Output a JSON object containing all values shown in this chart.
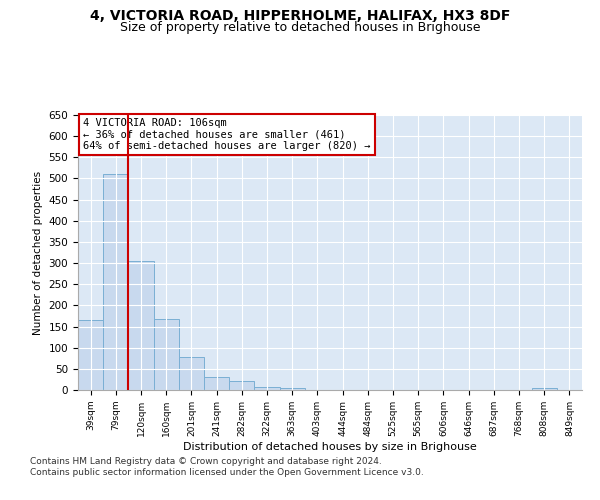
{
  "title": "4, VICTORIA ROAD, HIPPERHOLME, HALIFAX, HX3 8DF",
  "subtitle": "Size of property relative to detached houses in Brighouse",
  "xlabel": "Distribution of detached houses by size in Brighouse",
  "ylabel": "Number of detached properties",
  "bar_values": [
    165,
    510,
    305,
    168,
    77,
    30,
    21,
    6,
    5,
    0,
    0,
    0,
    0,
    0,
    0,
    0,
    0,
    0,
    5,
    0
  ],
  "bar_labels": [
    "39sqm",
    "79sqm",
    "120sqm",
    "160sqm",
    "201sqm",
    "241sqm",
    "282sqm",
    "322sqm",
    "363sqm",
    "403sqm",
    "444sqm",
    "484sqm",
    "525sqm",
    "565sqm",
    "606sqm",
    "646sqm",
    "687sqm",
    "768sqm",
    "808sqm",
    "849sqm"
  ],
  "bar_color": "#c8d9ee",
  "bar_edge_color": "#7aafd4",
  "vline_x": 2.0,
  "vline_color": "#cc0000",
  "annotation_text": "4 VICTORIA ROAD: 106sqm\n← 36% of detached houses are smaller (461)\n64% of semi-detached houses are larger (820) →",
  "annotation_box_color": "#ffffff",
  "annotation_box_edge": "#cc0000",
  "ylim": [
    0,
    650
  ],
  "yticks": [
    0,
    50,
    100,
    150,
    200,
    250,
    300,
    350,
    400,
    450,
    500,
    550,
    600,
    650
  ],
  "bg_color": "#dce8f5",
  "fig_bg": "#ffffff",
  "grid_color": "#ffffff",
  "footer": "Contains HM Land Registry data © Crown copyright and database right 2024.\nContains public sector information licensed under the Open Government Licence v3.0.",
  "title_fontsize": 10,
  "subtitle_fontsize": 9,
  "footer_fontsize": 6.5
}
